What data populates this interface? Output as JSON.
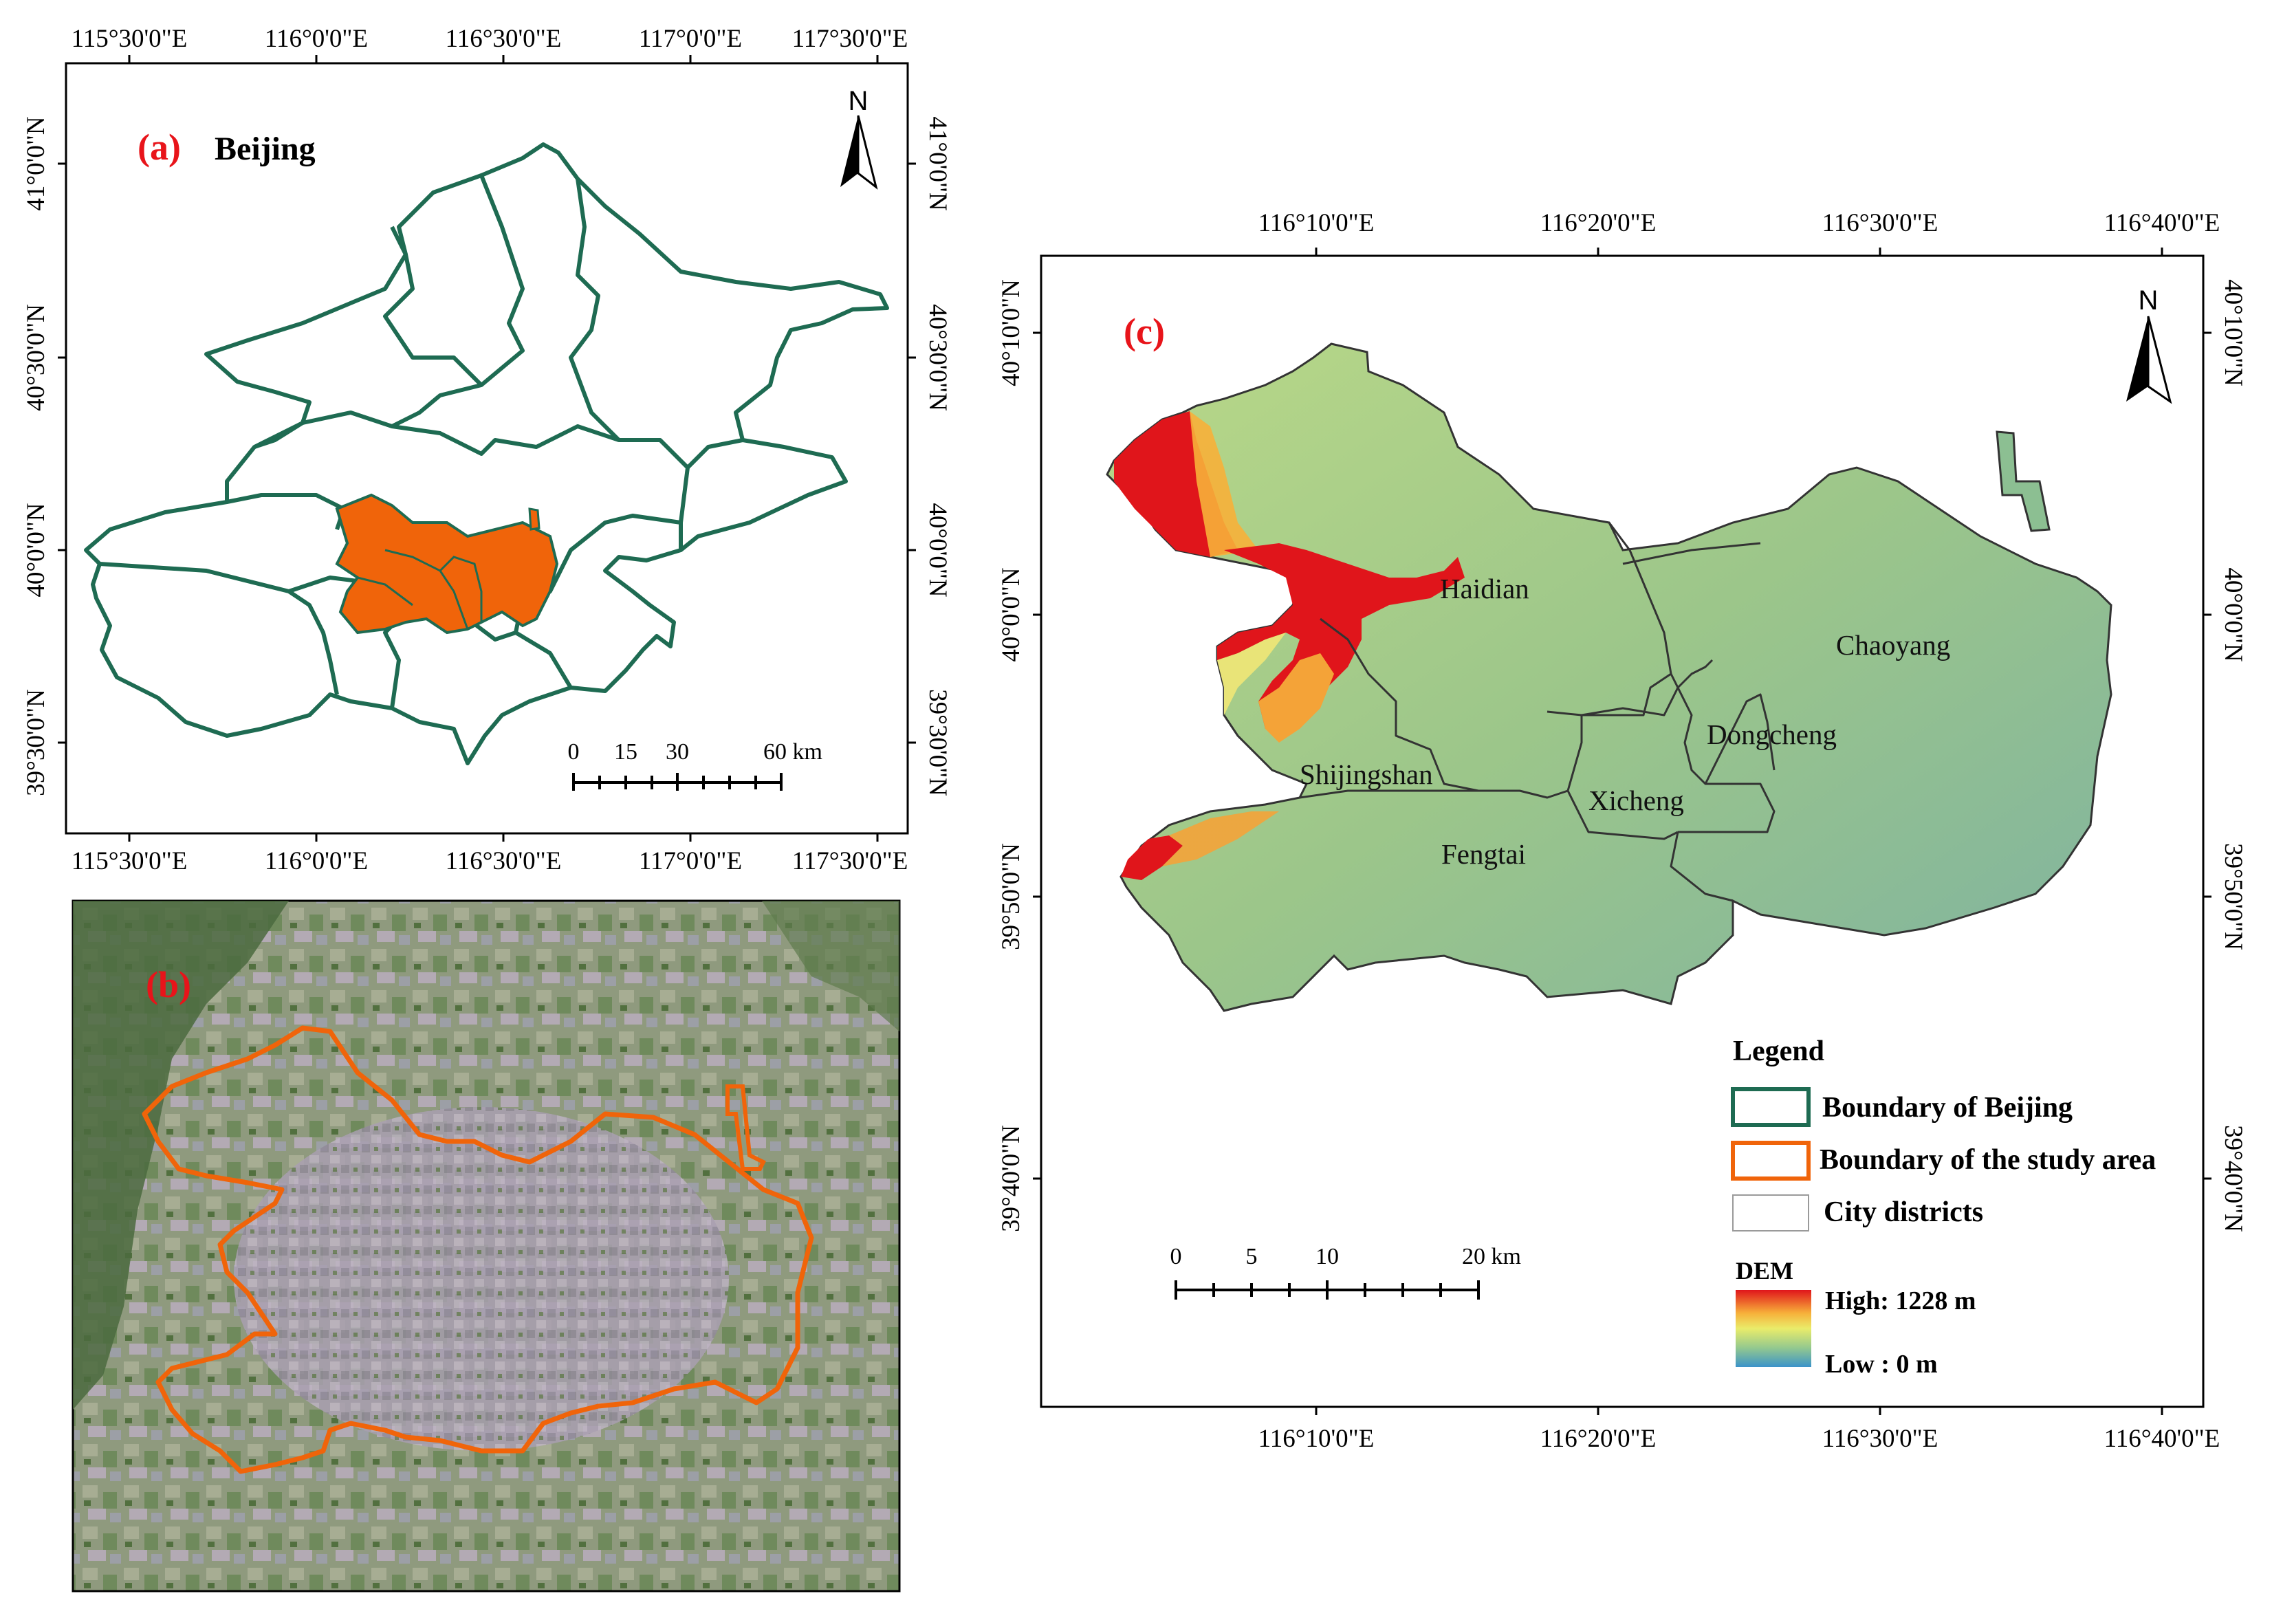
{
  "panel_a": {
    "label": "(a)",
    "title": "Beijing",
    "top_ticks": [
      "115°30'0\"E",
      "116°0'0\"E",
      "116°30'0\"E",
      "117°0'0\"E",
      "117°30'0\"E"
    ],
    "bottom_ticks": [
      "115°30'0\"E",
      "116°0'0\"E",
      "116°30'0\"E",
      "117°0'0\"E",
      "117°30'0\"E"
    ],
    "left_ticks": [
      "41°0'0\"N",
      "40°30'0\"N",
      "40°0'0\"N",
      "39°30'0\"N"
    ],
    "right_ticks": [
      "41°0'0\"N",
      "40°30'0\"N",
      "40°0'0\"N",
      "39°30'0\"N"
    ],
    "north": "N",
    "scale_labels": [
      "0",
      "15",
      "30",
      "60 km"
    ],
    "boundary_color": "#1e6b52",
    "study_color": "#f0640a"
  },
  "panel_b": {
    "label": "(b)"
  },
  "panel_c": {
    "label": "(c)",
    "top_ticks": [
      "116°10'0\"E",
      "116°20'0\"E",
      "116°30'0\"E",
      "116°40'0\"E"
    ],
    "bottom_ticks": [
      "116°10'0\"E",
      "116°20'0\"E",
      "116°30'0\"E",
      "116°40'0\"E"
    ],
    "left_ticks": [
      "40°10'0\"N",
      "40°0'0\"N",
      "39°50'0\"N",
      "39°40'0\"N"
    ],
    "right_ticks": [
      "40°10'0\"N",
      "40°0'0\"N",
      "39°50'0\"N",
      "39°40'0\"N"
    ],
    "north": "N",
    "districts": [
      "Haidian",
      "Chaoyang",
      "Dongcheng",
      "Shijingshan",
      "Xicheng",
      "Fengtai"
    ],
    "scale_labels": [
      "0",
      "5",
      "10",
      "20 km"
    ],
    "legend": {
      "title": "Legend",
      "items": [
        "Boundary of Beijing",
        "Boundary of the study area",
        "City districts"
      ],
      "dem_title": "DEM",
      "dem_high": "High: 1228 m",
      "dem_low": "Low : 0 m"
    }
  }
}
